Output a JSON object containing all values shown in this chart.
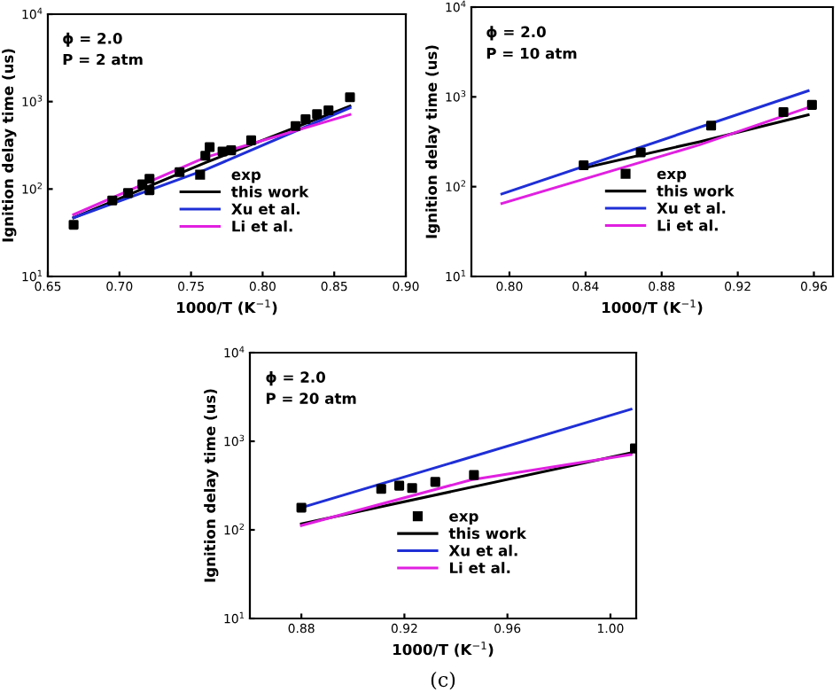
{
  "chart_data": [
    {
      "type": "line",
      "annotations": [
        "ϕ = 2.0",
        "P = 2 atm"
      ],
      "xlabel": "1000/T (K$^{−1}$)",
      "ylabel": "Ignition delay time (us)",
      "log": "y",
      "grid": false,
      "legend": "lower center",
      "xlim": [
        0.65,
        0.9
      ],
      "xticks": [
        {
          "value": 0.65,
          "label": "0.65"
        },
        {
          "value": 0.7,
          "label": "0.70"
        },
        {
          "value": 0.75,
          "label": "0.75"
        },
        {
          "value": 0.8,
          "label": "0.80"
        },
        {
          "value": 0.85,
          "label": "0.85"
        },
        {
          "value": 0.9,
          "label": "0.90"
        }
      ],
      "ylim": [
        10,
        10000
      ],
      "yticks": [
        {
          "value": 10,
          "label": "10$^{1}$"
        },
        {
          "value": 100,
          "label": "10$^{2}$"
        },
        {
          "value": 1000,
          "label": "10$^{3}$"
        },
        {
          "value": 10000,
          "label": "10$^{4}$"
        }
      ],
      "series": [
        {
          "name": "exp",
          "type": "scatter",
          "marker": "square",
          "color": "#000000",
          "x": [
            0.668,
            0.695,
            0.706,
            0.716,
            0.721,
            0.721,
            0.742,
            0.76,
            0.763,
            0.772,
            0.778,
            0.792,
            0.823,
            0.83,
            0.838,
            0.846,
            0.861
          ],
          "values": [
            39,
            74,
            90,
            113,
            131,
            97,
            156,
            240,
            302,
            269,
            277,
            361,
            525,
            630,
            720,
            795,
            1120
          ]
        },
        {
          "name": "this work",
          "color": "#000000",
          "x": [
            0.668,
            0.76,
            0.861
          ],
          "values": [
            47,
            200,
            890
          ]
        },
        {
          "name": "Xu et al.",
          "color": "#1f2fd6",
          "x": [
            0.668,
            0.76,
            0.861
          ],
          "values": [
            47,
            166,
            850
          ]
        },
        {
          "name": "Li et al.",
          "color": "#e020e0",
          "x": [
            0.668,
            0.76,
            0.861
          ],
          "values": [
            51,
            230,
            710
          ]
        }
      ]
    },
    {
      "type": "line",
      "annotations": [
        "ϕ = 2.0",
        "P = 10 atm"
      ],
      "xlabel": "1000/T (K$^{−1}$)",
      "ylabel": "Ignition delay time (us)",
      "log": "y",
      "grid": false,
      "legend": "lower center",
      "xlim": [
        0.78,
        0.97
      ],
      "xticks": [
        {
          "value": 0.8,
          "label": "0.80"
        },
        0.84,
        0.88,
        0.92,
        0.96
      ],
      "ylim": [
        10,
        10000
      ],
      "yticks": [
        {
          "value": 10,
          "label": "10$^{1}$"
        },
        {
          "value": 100,
          "label": "10$^{2}$"
        },
        {
          "value": 1000,
          "label": "10$^{3}$"
        },
        {
          "value": 10000,
          "label": "10$^{4}$"
        }
      ],
      "series": [
        {
          "name": "exp",
          "type": "scatter",
          "marker": "square",
          "color": "#000000",
          "x": [
            0.839,
            0.869,
            0.906,
            0.944,
            0.959
          ],
          "values": [
            173,
            241,
            478,
            676,
            815
          ]
        },
        {
          "name": "this work",
          "color": "#000000",
          "x": [
            0.84,
            0.9,
            0.957
          ],
          "values": [
            163,
            317,
            630
          ]
        },
        {
          "name": "Xu et al.",
          "color": "#1f2fd6",
          "x": [
            0.796,
            0.957
          ],
          "values": [
            83,
            1170
          ]
        },
        {
          "name": "Li et al.",
          "color": "#e020e0",
          "x": [
            0.796,
            0.9,
            0.957
          ],
          "values": [
            65,
            293,
            760
          ]
        }
      ]
    },
    {
      "type": "line",
      "title": "(c)",
      "annotations": [
        "ϕ = 2.0",
        "P = 20 atm"
      ],
      "xlabel": "1000/T (K$^{−1}$)",
      "ylabel": "Ignition delay time (us)",
      "log": "y",
      "grid": false,
      "legend": "lower center",
      "xlim": [
        0.86,
        1.01
      ],
      "xticks": [
        0.88,
        0.92,
        0.96,
        {
          "value": 1.0,
          "label": "1.00"
        }
      ],
      "ylim": [
        10,
        10000
      ],
      "yticks": [
        {
          "value": 10,
          "label": "10$^{1}$"
        },
        {
          "value": 100,
          "label": "10$^{2}$"
        },
        {
          "value": 1000,
          "label": "10$^{3}$"
        },
        {
          "value": 10000,
          "label": "10$^{4}$"
        }
      ],
      "series": [
        {
          "name": "exp",
          "type": "scatter",
          "marker": "square",
          "color": "#000000",
          "x": [
            0.88,
            0.911,
            0.918,
            0.923,
            0.932,
            0.947,
            1.0095
          ],
          "values": [
            178,
            290,
            315,
            297,
            348,
            416,
            830
          ]
        },
        {
          "name": "this work",
          "color": "#000000",
          "x": [
            0.88,
            1.008
          ],
          "values": [
            117,
            740
          ]
        },
        {
          "name": "Xu et al.",
          "color": "#1f2fd6",
          "x": [
            0.88,
            1.008
          ],
          "values": [
            178,
            2300
          ]
        },
        {
          "name": "Li et al.",
          "color": "#e020e0",
          "x": [
            0.88,
            0.946,
            1.008
          ],
          "values": [
            112,
            367,
            710
          ]
        }
      ]
    }
  ]
}
